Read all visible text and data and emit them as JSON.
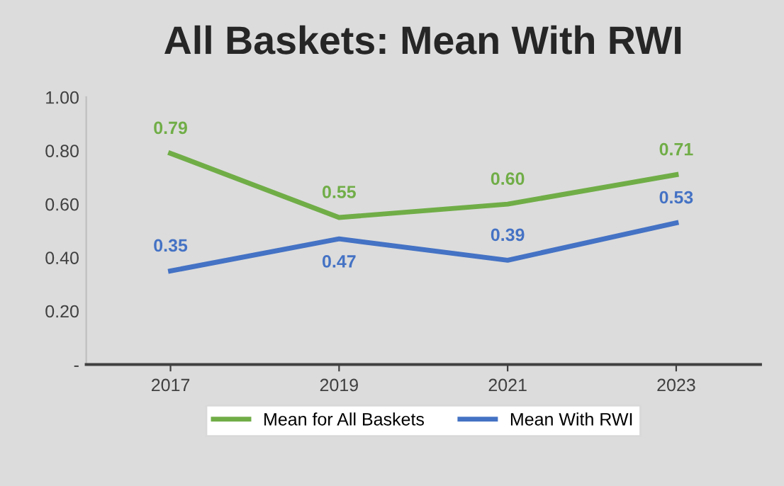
{
  "chart_data": {
    "type": "line",
    "title": "All Baskets: Mean With RWI",
    "categories": [
      "2017",
      "2019",
      "2021",
      "2023"
    ],
    "series": [
      {
        "name": "Mean for All Baskets",
        "color": "#70ad47",
        "values": [
          0.79,
          0.55,
          0.6,
          0.71
        ],
        "value_labels": [
          "0.79",
          "0.55",
          "0.60",
          "0.71"
        ]
      },
      {
        "name": "Mean With RWI",
        "color": "#4472c4",
        "values": [
          0.35,
          0.47,
          0.39,
          0.53
        ],
        "value_labels": [
          "0.35",
          "0.47",
          "0.39",
          "0.53"
        ]
      }
    ],
    "ylim": [
      0,
      1.0
    ],
    "yticks": [
      {
        "value": 0,
        "label": "-"
      },
      {
        "value": 0.2,
        "label": "0.20"
      },
      {
        "value": 0.4,
        "label": "0.40"
      },
      {
        "value": 0.6,
        "label": "0.60"
      },
      {
        "value": 0.8,
        "label": "0.80"
      },
      {
        "value": 1.0,
        "label": "1.00"
      }
    ],
    "grid": false,
    "legend": "bottom",
    "marker": "none",
    "line_style": "solid"
  }
}
